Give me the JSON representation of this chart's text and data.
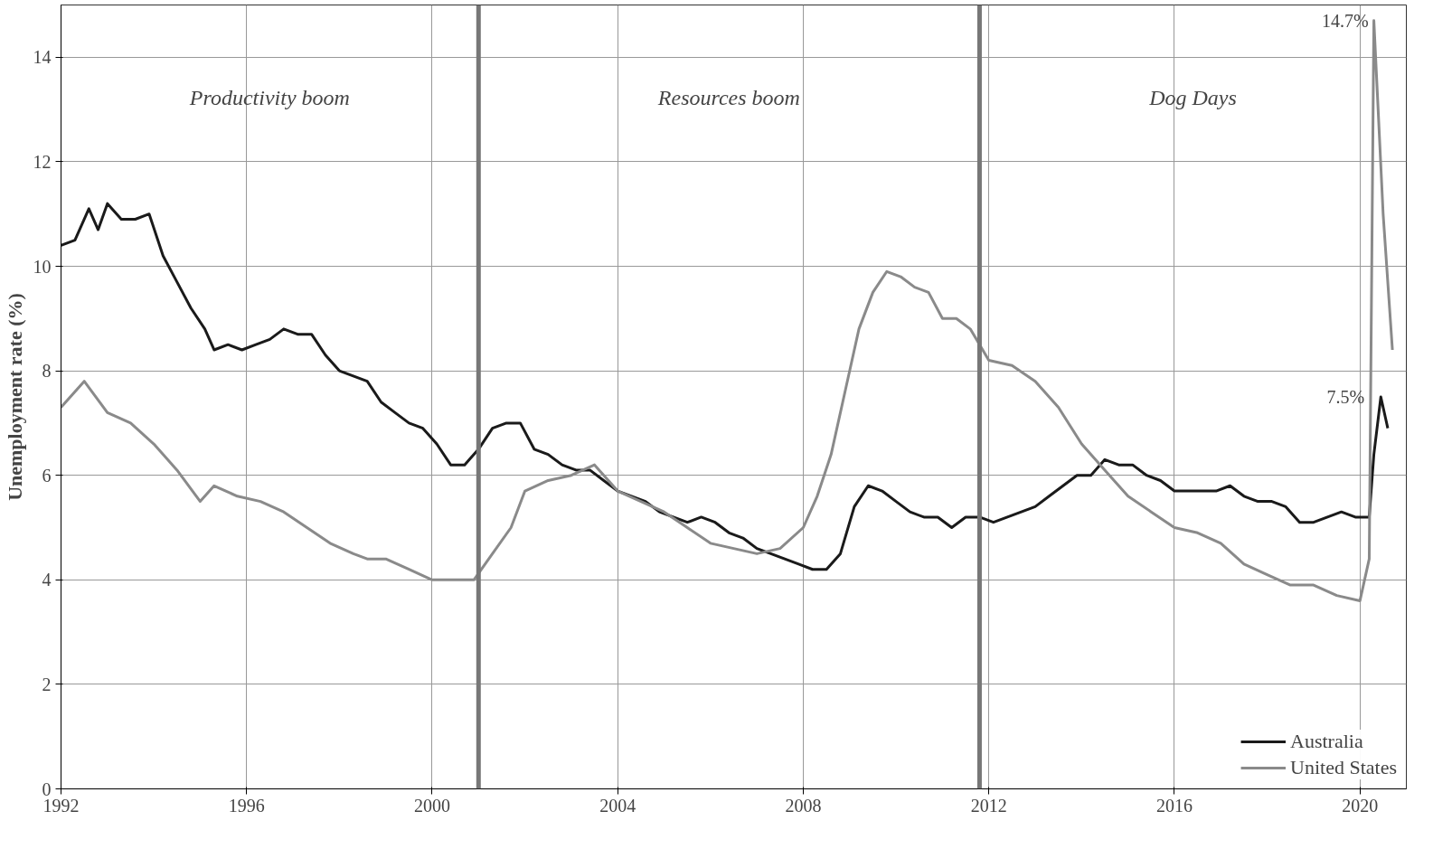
{
  "chart_data": {
    "type": "line",
    "ylabel": "Unemployment rate (%)",
    "xlim": [
      1992,
      2021.0
    ],
    "xticks": [
      1992,
      1996,
      2000,
      2004,
      2008,
      2012,
      2016,
      2020
    ],
    "ylim": [
      0,
      15
    ],
    "yticks": [
      0,
      2,
      4,
      6,
      8,
      10,
      12,
      14
    ],
    "grid": true,
    "legend": "bottom right",
    "line_style": "solid",
    "marker": "none",
    "annotations": [
      "Productivity boom",
      "Resources boom",
      "Dog Days",
      {
        "text": "14.7%",
        "x": 2020.3,
        "y": 14.7
      },
      {
        "text": "7.5%",
        "x": 2020.45,
        "y": 7.5
      }
    ],
    "ref_lines": [
      {
        "axis": "x",
        "value": 2001.0,
        "label": null,
        "color": "#777777"
      },
      {
        "axis": "x",
        "value": 2011.8,
        "label": null,
        "color": "#777777"
      }
    ],
    "series": [
      {
        "name": "Australia",
        "color": "#1a1a1a",
        "x": [
          1992.0,
          1992.3,
          1992.6,
          1992.8,
          1993.0,
          1993.3,
          1993.6,
          1993.9,
          1994.2,
          1994.5,
          1994.8,
          1995.1,
          1995.3,
          1995.6,
          1995.9,
          1996.2,
          1996.5,
          1996.8,
          1997.1,
          1997.4,
          1997.7,
          1998.0,
          1998.3,
          1998.6,
          1998.9,
          1999.2,
          1999.5,
          1999.8,
          2000.1,
          2000.4,
          2000.7,
          2001.0,
          2001.3,
          2001.6,
          2001.9,
          2002.2,
          2002.5,
          2002.8,
          2003.1,
          2003.4,
          2003.7,
          2004.0,
          2004.3,
          2004.6,
          2004.9,
          2005.2,
          2005.5,
          2005.8,
          2006.1,
          2006.4,
          2006.7,
          2007.0,
          2007.3,
          2007.6,
          2007.9,
          2008.2,
          2008.5,
          2008.8,
          2009.1,
          2009.4,
          2009.7,
          2010.0,
          2010.3,
          2010.6,
          2010.9,
          2011.2,
          2011.5,
          2011.8,
          2012.1,
          2012.4,
          2012.7,
          2013.0,
          2013.3,
          2013.6,
          2013.9,
          2014.2,
          2014.5,
          2014.8,
          2015.1,
          2015.4,
          2015.7,
          2016.0,
          2016.3,
          2016.6,
          2016.9,
          2017.2,
          2017.5,
          2017.8,
          2018.1,
          2018.4,
          2018.7,
          2019.0,
          2019.3,
          2019.6,
          2019.9,
          2020.2,
          2020.3,
          2020.45,
          2020.6
        ],
        "values": [
          10.4,
          10.5,
          11.1,
          10.7,
          11.2,
          10.9,
          10.9,
          11.0,
          10.2,
          9.7,
          9.2,
          8.8,
          8.4,
          8.5,
          8.4,
          8.5,
          8.6,
          8.8,
          8.7,
          8.7,
          8.3,
          8.0,
          7.9,
          7.8,
          7.4,
          7.2,
          7.0,
          6.9,
          6.6,
          6.2,
          6.2,
          6.5,
          6.9,
          7.0,
          7.0,
          6.5,
          6.4,
          6.2,
          6.1,
          6.1,
          5.9,
          5.7,
          5.6,
          5.5,
          5.3,
          5.2,
          5.1,
          5.2,
          5.1,
          4.9,
          4.8,
          4.6,
          4.5,
          4.4,
          4.3,
          4.2,
          4.2,
          4.5,
          5.4,
          5.8,
          5.7,
          5.5,
          5.3,
          5.2,
          5.2,
          5.0,
          5.2,
          5.2,
          5.1,
          5.2,
          5.3,
          5.4,
          5.6,
          5.8,
          6.0,
          6.0,
          6.3,
          6.2,
          6.2,
          6.0,
          5.9,
          5.7,
          5.7,
          5.7,
          5.7,
          5.8,
          5.6,
          5.5,
          5.5,
          5.4,
          5.1,
          5.1,
          5.2,
          5.3,
          5.2,
          5.2,
          6.4,
          7.5,
          6.9
        ]
      },
      {
        "name": "United States",
        "color": "#8a8a8a",
        "x": [
          1992.0,
          1992.5,
          1993.0,
          1993.5,
          1994.0,
          1994.5,
          1995.0,
          1995.3,
          1995.8,
          1996.3,
          1996.8,
          1997.3,
          1997.8,
          1998.3,
          1998.6,
          1999.0,
          1999.5,
          2000.0,
          2000.5,
          2000.9,
          2001.3,
          2001.7,
          2002.0,
          2002.5,
          2003.0,
          2003.5,
          2004.0,
          2004.5,
          2005.0,
          2005.5,
          2006.0,
          2006.5,
          2007.0,
          2007.5,
          2008.0,
          2008.3,
          2008.6,
          2008.9,
          2009.2,
          2009.5,
          2009.8,
          2010.1,
          2010.4,
          2010.7,
          2011.0,
          2011.3,
          2011.6,
          2012.0,
          2012.5,
          2013.0,
          2013.5,
          2014.0,
          2014.5,
          2015.0,
          2015.5,
          2016.0,
          2016.5,
          2017.0,
          2017.5,
          2018.0,
          2018.5,
          2019.0,
          2019.5,
          2020.0,
          2020.2,
          2020.3,
          2020.5,
          2020.7
        ],
        "values": [
          7.3,
          7.8,
          7.2,
          7.0,
          6.6,
          6.1,
          5.5,
          5.8,
          5.6,
          5.5,
          5.3,
          5.0,
          4.7,
          4.5,
          4.4,
          4.4,
          4.2,
          4.0,
          4.0,
          4.0,
          4.5,
          5.0,
          5.7,
          5.9,
          6.0,
          6.2,
          5.7,
          5.5,
          5.3,
          5.0,
          4.7,
          4.6,
          4.5,
          4.6,
          5.0,
          5.6,
          6.4,
          7.6,
          8.8,
          9.5,
          9.9,
          9.8,
          9.6,
          9.5,
          9.0,
          9.0,
          8.8,
          8.2,
          8.1,
          7.8,
          7.3,
          6.6,
          6.1,
          5.6,
          5.3,
          5.0,
          4.9,
          4.7,
          4.3,
          4.1,
          3.9,
          3.9,
          3.7,
          3.6,
          4.4,
          14.7,
          11.0,
          8.4
        ]
      }
    ]
  }
}
